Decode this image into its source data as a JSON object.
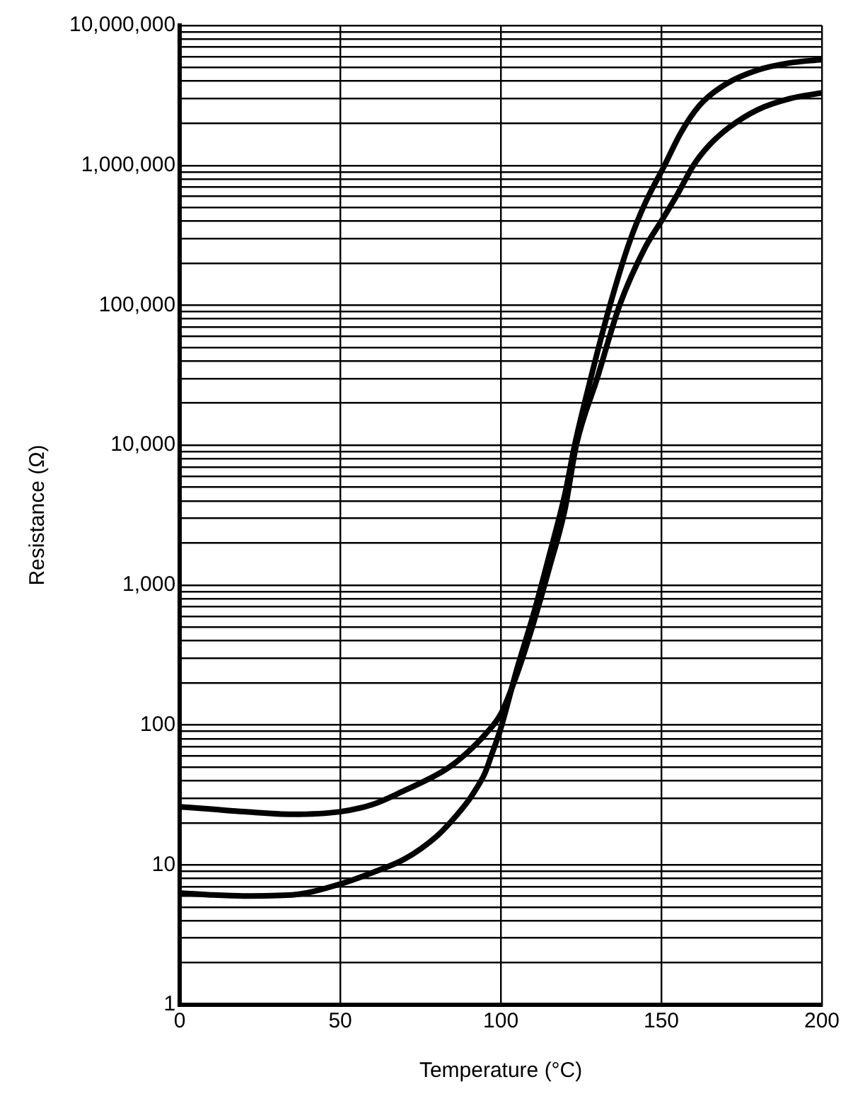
{
  "chart_data": {
    "type": "line",
    "xlabel": "Temperature (°C)",
    "ylabel": "Resistance (Ω)",
    "log": "y",
    "grid": true,
    "legend": false,
    "marker": "none",
    "line_style": "solid",
    "xlim": [
      0,
      200
    ],
    "xticks": [
      0,
      50,
      100,
      150,
      200
    ],
    "ylim": [
      1,
      10000000
    ],
    "yticks": [
      {
        "value": 1,
        "label": "1"
      },
      {
        "value": 2,
        "label": null
      },
      {
        "value": 3,
        "label": null
      },
      {
        "value": 4,
        "label": null
      },
      {
        "value": 5,
        "label": null
      },
      {
        "value": 6,
        "label": null
      },
      {
        "value": 7,
        "label": null
      },
      {
        "value": 8,
        "label": null
      },
      {
        "value": 9,
        "label": null
      },
      {
        "value": 10,
        "label": "10"
      },
      {
        "value": 20,
        "label": null
      },
      {
        "value": 30,
        "label": null
      },
      {
        "value": 40,
        "label": null
      },
      {
        "value": 50,
        "label": null
      },
      {
        "value": 60,
        "label": null
      },
      {
        "value": 70,
        "label": null
      },
      {
        "value": 80,
        "label": null
      },
      {
        "value": 90,
        "label": null
      },
      {
        "value": 100,
        "label": "100"
      },
      {
        "value": 200,
        "label": null
      },
      {
        "value": 300,
        "label": null
      },
      {
        "value": 400,
        "label": null
      },
      {
        "value": 500,
        "label": null
      },
      {
        "value": 600,
        "label": null
      },
      {
        "value": 700,
        "label": null
      },
      {
        "value": 800,
        "label": null
      },
      {
        "value": 900,
        "label": null
      },
      {
        "value": 1000,
        "label": "1,000"
      },
      {
        "value": 2000,
        "label": null
      },
      {
        "value": 3000,
        "label": null
      },
      {
        "value": 4000,
        "label": null
      },
      {
        "value": 5000,
        "label": null
      },
      {
        "value": 6000,
        "label": null
      },
      {
        "value": 7000,
        "label": null
      },
      {
        "value": 8000,
        "label": null
      },
      {
        "value": 9000,
        "label": null
      },
      {
        "value": 10000,
        "label": "10,000"
      },
      {
        "value": 20000,
        "label": null
      },
      {
        "value": 30000,
        "label": null
      },
      {
        "value": 40000,
        "label": null
      },
      {
        "value": 50000,
        "label": null
      },
      {
        "value": 60000,
        "label": null
      },
      {
        "value": 70000,
        "label": null
      },
      {
        "value": 80000,
        "label": null
      },
      {
        "value": 90000,
        "label": null
      },
      {
        "value": 100000,
        "label": "100,000"
      },
      {
        "value": 200000,
        "label": null
      },
      {
        "value": 300000,
        "label": null
      },
      {
        "value": 400000,
        "label": null
      },
      {
        "value": 500000,
        "label": null
      },
      {
        "value": 600000,
        "label": null
      },
      {
        "value": 700000,
        "label": null
      },
      {
        "value": 800000,
        "label": null
      },
      {
        "value": 900000,
        "label": null
      },
      {
        "value": 1000000,
        "label": "1,000,000"
      },
      {
        "value": 2000000,
        "label": null
      },
      {
        "value": 3000000,
        "label": null
      },
      {
        "value": 4000000,
        "label": null
      },
      {
        "value": 5000000,
        "label": null
      },
      {
        "value": 6000000,
        "label": null
      },
      {
        "value": 7000000,
        "label": null
      },
      {
        "value": 8000000,
        "label": null
      },
      {
        "value": 9000000,
        "label": null
      },
      {
        "value": 10000000,
        "label": "10,000,000"
      }
    ],
    "series": [
      {
        "color": "#000000",
        "x": [
          0,
          10,
          20,
          35,
          50,
          60,
          70,
          80,
          85,
          90,
          95,
          100,
          105,
          110,
          115,
          120,
          123.5,
          130,
          137,
          145,
          150,
          155,
          160,
          165,
          171,
          180,
          190,
          200
        ],
        "values": [
          26,
          25,
          24,
          23,
          24,
          27,
          34,
          44,
          52,
          65,
          85,
          120,
          230,
          520,
          1300,
          3500,
          10000,
          30000,
          100000,
          260000,
          400000,
          620000,
          1000000,
          1400000,
          1860000,
          2500000,
          3000000,
          3300000
        ]
      },
      {
        "color": "#000000",
        "x": [
          0,
          10,
          20,
          35,
          50,
          60,
          70,
          80,
          85,
          90,
          92,
          95,
          97,
          100,
          105,
          110,
          115,
          120,
          123,
          128,
          134,
          140,
          145,
          151,
          156,
          162,
          170,
          180,
          190,
          200
        ],
        "values": [
          6.3,
          6.1,
          6,
          6.1,
          7.3,
          8.8,
          11,
          16,
          21,
          29,
          34,
          45,
          60,
          95,
          250,
          600,
          1600,
          4500,
          10000,
          30000,
          100000,
          280000,
          540000,
          1000000,
          1700000,
          2700000,
          3800000,
          4800000,
          5400000,
          5700000
        ]
      }
    ]
  }
}
